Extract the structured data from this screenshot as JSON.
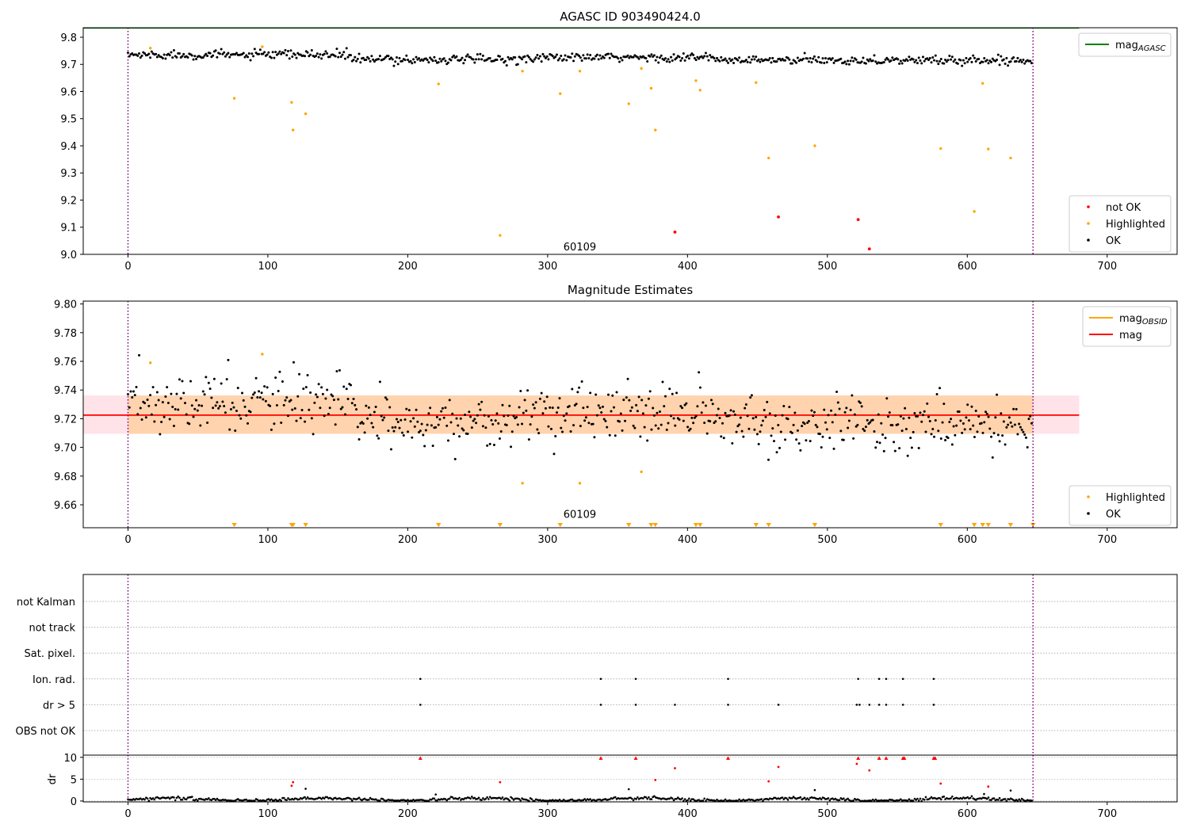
{
  "figure": {
    "background": "#ffffff"
  },
  "chart_data": [
    {
      "type": "scatter",
      "title": "AGASC ID 903490424.0",
      "xlim": [
        -32,
        750
      ],
      "ylim": [
        9.0,
        9.835
      ],
      "xticks": [
        0,
        100,
        200,
        300,
        400,
        500,
        600,
        700
      ],
      "yticks": [
        9.0,
        9.1,
        9.2,
        9.3,
        9.4,
        9.5,
        9.6,
        9.7,
        9.8
      ],
      "ytick_labels": [
        "9.0",
        "9.1",
        "9.2",
        "9.3",
        "9.4",
        "9.5",
        "9.6",
        "9.7",
        "9.8"
      ],
      "vlines": [
        0,
        647
      ],
      "obsid_label": {
        "text": "60109",
        "x": 323,
        "y": 9.015
      },
      "agasc_line": {
        "label": "mag<tspan font-size='10' font-style='italic' baseline-shift='sub'>AGASC</tspan>",
        "legend_text": "mag",
        "legend_sub": "AGASC",
        "y": 9.834,
        "x_range": [
          -32,
          680
        ],
        "color": "#008000"
      },
      "legend_top": {
        "position": "upper right",
        "entries": [
          {
            "kind": "line",
            "color": "#008000",
            "label": "mag",
            "sub": "AGASC"
          }
        ]
      },
      "legend_bottom": {
        "position": "lower right",
        "entries": [
          {
            "kind": "point",
            "color": "#ff0000",
            "label": "not OK"
          },
          {
            "kind": "point",
            "color": "#ffa500",
            "label": "Highlighted"
          },
          {
            "kind": "point",
            "color": "#000000",
            "label": "OK"
          }
        ]
      },
      "ok_series": {
        "color": "#000000",
        "x_range": [
          0,
          646
        ],
        "count": 650
      },
      "highlighted": {
        "color": "#ffa500",
        "x": [
          16,
          76,
          96,
          117,
          118,
          127,
          222,
          266,
          282,
          309,
          323,
          358,
          367,
          374,
          377,
          406,
          409,
          449,
          458,
          491,
          581,
          605,
          611,
          615,
          631
        ],
        "y": [
          9.76,
          9.575,
          9.765,
          9.56,
          9.458,
          9.518,
          9.628,
          9.07,
          9.675,
          9.592,
          9.675,
          9.555,
          9.685,
          9.612,
          9.458,
          9.64,
          9.605,
          9.633,
          9.355,
          9.4,
          9.39,
          9.158,
          9.63,
          9.388,
          9.355
        ]
      },
      "not_ok": {
        "color": "#ff0000",
        "x": [
          391,
          465,
          522,
          530
        ],
        "y": [
          9.082,
          9.138,
          9.128,
          9.02
        ]
      }
    },
    {
      "type": "scatter",
      "title": "Magnitude Estimates",
      "xlim": [
        -32,
        750
      ],
      "ylim": [
        9.644,
        9.802
      ],
      "xticks": [
        0,
        100,
        200,
        300,
        400,
        500,
        600,
        700
      ],
      "yticks": [
        9.66,
        9.68,
        9.7,
        9.72,
        9.74,
        9.76,
        9.78,
        9.8
      ],
      "ytick_labels": [
        "9.66",
        "9.68",
        "9.70",
        "9.72",
        "9.74",
        "9.76",
        "9.78",
        "9.80"
      ],
      "vlines": [
        0,
        647
      ],
      "obsid_label": {
        "text": "60109",
        "x": 323,
        "y": 9.651
      },
      "mag_line": {
        "y": 9.7225,
        "x_range": [
          -32,
          680
        ],
        "color": "#ff0000"
      },
      "band_outer": {
        "y_range": [
          9.7095,
          9.7362
        ],
        "x_range": [
          -32,
          680
        ],
        "color": "#ffc0cb"
      },
      "band_inner": {
        "y_range": [
          9.7095,
          9.7362
        ],
        "x_range": [
          0,
          647
        ],
        "color": "#ffa500"
      },
      "legend_top": {
        "position": "upper right",
        "entries": [
          {
            "kind": "line",
            "color": "#ffa500",
            "label": "mag",
            "sub": "OBSID"
          },
          {
            "kind": "line",
            "color": "#ff0000",
            "label": "mag",
            "sub": ""
          }
        ]
      },
      "legend_bottom": {
        "position": "lower right",
        "entries": [
          {
            "kind": "point",
            "color": "#ffa500",
            "label": "Highlighted"
          },
          {
            "kind": "point",
            "color": "#000000",
            "label": "OK"
          }
        ]
      },
      "ok_series": {
        "color": "#000000",
        "x_range": [
          0,
          646
        ],
        "count": 650
      },
      "highlighted": {
        "color": "#ffa500",
        "x": [
          16,
          96,
          282,
          323,
          367
        ],
        "y": [
          9.759,
          9.765,
          9.675,
          9.675,
          9.683
        ]
      },
      "markers": {
        "color": "#ffa500",
        "y": 9.645,
        "x": [
          76,
          117,
          118,
          127,
          222,
          266,
          309,
          358,
          374,
          377,
          406,
          409,
          449,
          458,
          491,
          581,
          605,
          611,
          615,
          631,
          647
        ]
      }
    },
    {
      "type": "scatter",
      "title": "",
      "xlim": [
        -32,
        750
      ],
      "categories": [
        "not Kalman",
        "not track",
        "Sat. pixel.",
        "Ion. rad.",
        "dr > 5",
        "OBS not OK"
      ],
      "vlines": [
        0,
        647
      ],
      "flags": {
        "Ion. rad.": [
          209,
          338,
          363,
          429,
          522,
          537,
          542,
          554,
          576
        ],
        "dr > 5": [
          209,
          338,
          363,
          391,
          429,
          465,
          521,
          523,
          530,
          537,
          542,
          554,
          576
        ]
      }
    },
    {
      "type": "scatter",
      "title": "",
      "ylabel": "dr",
      "xlim": [
        -32,
        750
      ],
      "ylim": [
        -0.2,
        10.5
      ],
      "xticks": [
        0,
        100,
        200,
        300,
        400,
        500,
        600,
        700
      ],
      "yticks": [
        0,
        5,
        10
      ],
      "ytick_labels": [
        "0",
        "5",
        "10"
      ],
      "vlines": [
        0,
        647
      ],
      "ok_series": {
        "color": "#000000",
        "x_range": [
          0,
          646
        ],
        "count": 650
      },
      "black_extra": {
        "x": [
          127,
          220,
          358,
          491,
          612,
          631
        ],
        "y": [
          2.8,
          1.5,
          2.7,
          2.5,
          1.6,
          2.4
        ]
      },
      "red_points": {
        "color": "#ff0000",
        "x": [
          117,
          118,
          266,
          377,
          391,
          458,
          465,
          521,
          530,
          581,
          615
        ],
        "y": [
          3.5,
          4.3,
          4.3,
          4.8,
          7.5,
          4.5,
          7.8,
          8.5,
          7.0,
          4.0,
          3.3
        ]
      },
      "red_triangles": {
        "color": "#ff0000",
        "y": 9.8,
        "x": [
          209,
          338,
          363,
          429,
          522,
          537,
          542,
          554,
          555,
          576,
          577
        ]
      }
    }
  ]
}
